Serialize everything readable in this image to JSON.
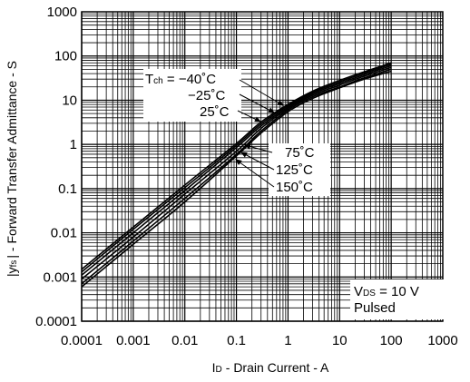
{
  "chart_data": {
    "type": "line",
    "xscale": "log",
    "yscale": "log",
    "xlim": [
      0.0001,
      1000
    ],
    "ylim": [
      0.0001,
      1000
    ],
    "grid": true,
    "x_ticks": [
      "0.0001",
      "0.001",
      "0.01",
      "0.1",
      "1",
      "10",
      "100",
      "1000"
    ],
    "y_ticks": [
      "1000",
      "100",
      "10",
      "1",
      "0.1",
      "0.01",
      "0.001",
      "0.0001"
    ],
    "xlabel": {
      "prefix": "I",
      "sub": "D",
      "rest": "- Drain Current - A"
    },
    "ylabel": {
      "head": "|y",
      "sub": "fs",
      "rest": "| - Forward Transfer Admittance - S"
    },
    "condition": {
      "line1_prefix": "V",
      "line1_sub": "DS",
      "line1_rest": " = 10 V",
      "line2": "Pulsed"
    },
    "tch_label": {
      "prefix": "T",
      "sub": "ch",
      "rest": " = −40˚C"
    },
    "temp_labels": [
      "−25˚C",
      "25˚C",
      "75˚C",
      "125˚C",
      "150˚C"
    ],
    "series": [
      {
        "temp": -40,
        "x": [
          0.0001,
          0.001,
          0.01,
          0.1,
          0.3,
          1,
          3,
          10,
          30,
          100
        ],
        "y": [
          0.0006,
          0.0055,
          0.05,
          0.55,
          1.8,
          5.5,
          11,
          19,
          30,
          45
        ]
      },
      {
        "temp": -25,
        "x": [
          0.0001,
          0.001,
          0.01,
          0.1,
          0.3,
          1,
          3,
          10,
          30,
          100
        ],
        "y": [
          0.0007,
          0.0065,
          0.06,
          0.6,
          2.0,
          6.0,
          12,
          20,
          32,
          50
        ]
      },
      {
        "temp": 25,
        "x": [
          0.0001,
          0.001,
          0.01,
          0.1,
          0.3,
          1,
          3,
          10,
          30,
          100
        ],
        "y": [
          0.0009,
          0.008,
          0.075,
          0.7,
          2.3,
          6.5,
          13,
          22,
          35,
          55
        ]
      },
      {
        "temp": 75,
        "x": [
          0.0001,
          0.001,
          0.01,
          0.1,
          0.3,
          1,
          3,
          10,
          30,
          100
        ],
        "y": [
          0.0011,
          0.01,
          0.09,
          0.85,
          2.6,
          7.0,
          14,
          24,
          38,
          60
        ]
      },
      {
        "temp": 125,
        "x": [
          0.0001,
          0.001,
          0.01,
          0.1,
          0.3,
          1,
          3,
          10,
          30,
          100
        ],
        "y": [
          0.0013,
          0.012,
          0.105,
          0.95,
          2.9,
          7.5,
          15,
          26,
          41,
          65
        ]
      },
      {
        "temp": 150,
        "x": [
          0.0001,
          0.001,
          0.01,
          0.1,
          0.3,
          1,
          3,
          10,
          30,
          100
        ],
        "y": [
          0.0015,
          0.0135,
          0.12,
          1.05,
          3.2,
          8.0,
          16,
          28,
          44,
          70
        ]
      }
    ]
  }
}
